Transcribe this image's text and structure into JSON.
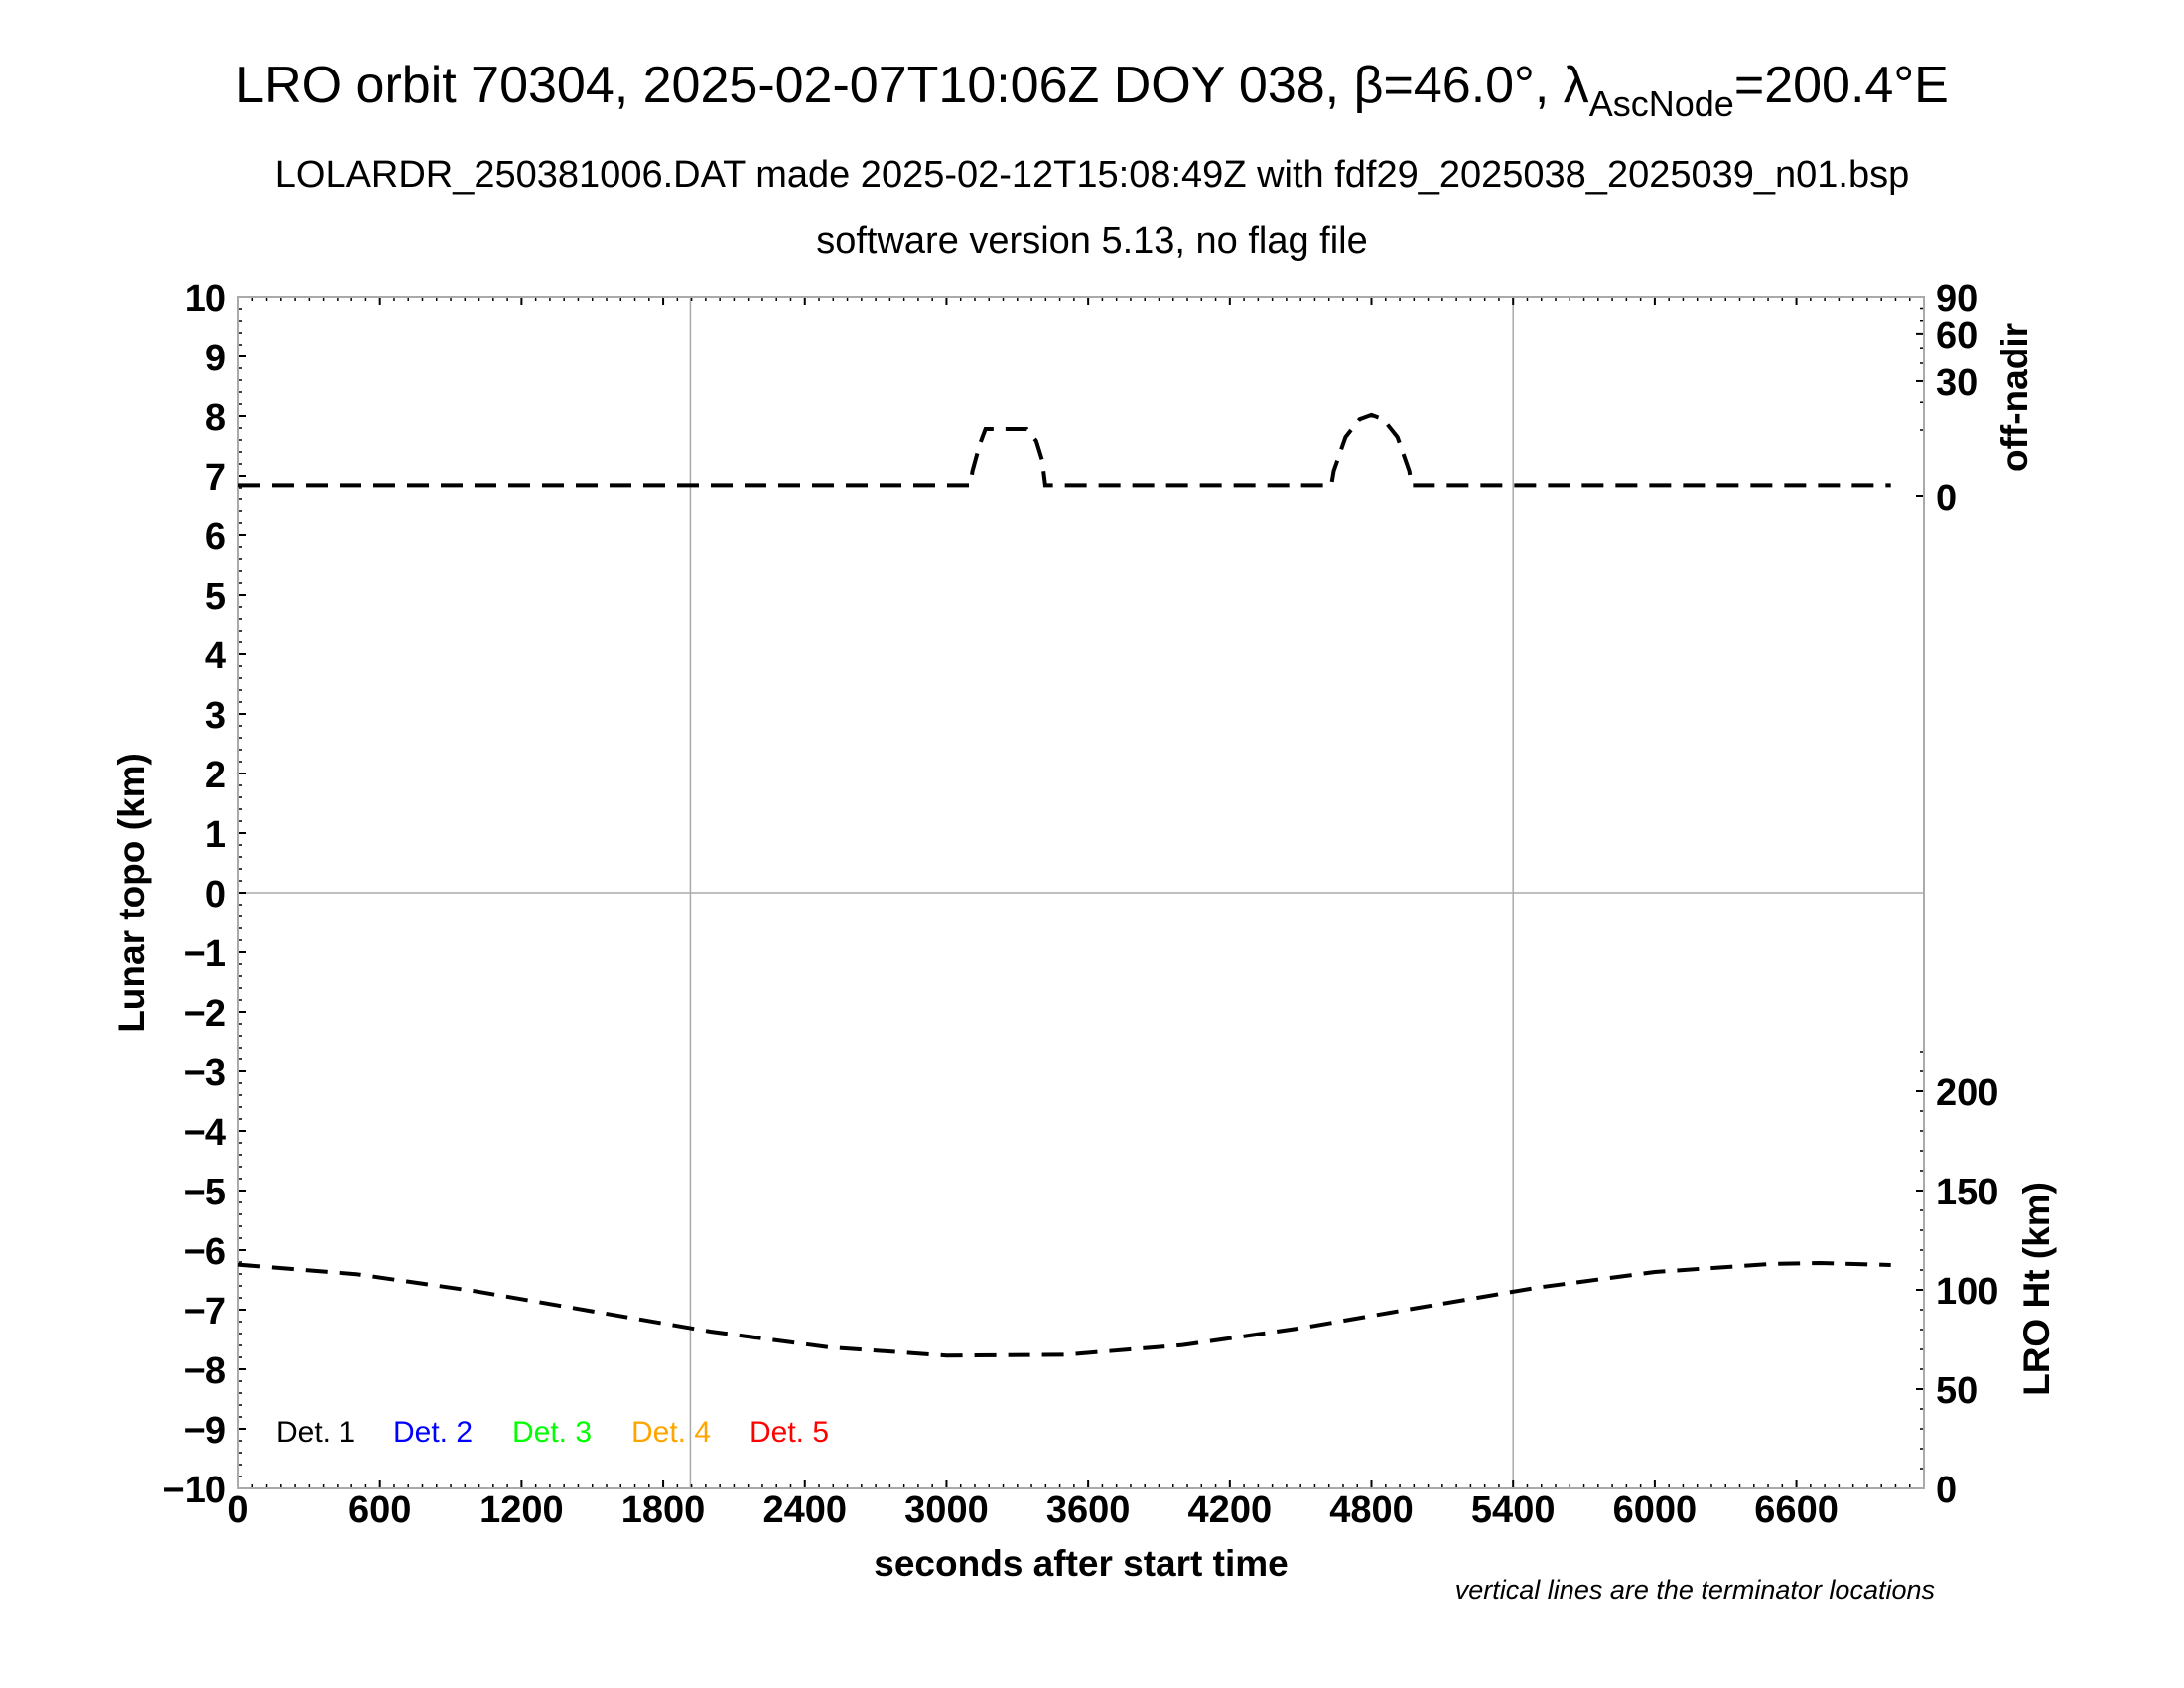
{
  "title": {
    "main_prefix": "LRO orbit 70304, 2025-02-07T10:06Z DOY 038, β=46.0°, λ",
    "main_sub": "AscNode",
    "main_suffix": "=200.4°E",
    "line2": "LOLARDR_250381006.DAT made 2025-02-12T15:08:49Z with fdf29_2025038_2025039_n01.bsp",
    "line3": "software version 5.13, no flag file"
  },
  "footnote": "vertical lines are the terminator locations",
  "chart_data": {
    "type": "line",
    "xlabel": "seconds after start time",
    "ylabel_left": "Lunar topo (km)",
    "ylabel_right_top": "off-nadir",
    "ylabel_right_bottom": "LRO Ht (km)",
    "xlim": [
      0,
      7140
    ],
    "ylim_left": [
      -10,
      10
    ],
    "x_ticks": [
      "0",
      "600",
      "1200",
      "1800",
      "2400",
      "3000",
      "3600",
      "4200",
      "4800",
      "5400",
      "6000",
      "6600"
    ],
    "y_ticks_left": [
      "10",
      "9",
      "8",
      "7",
      "6",
      "5",
      "4",
      "3",
      "2",
      "1",
      "0",
      "−1",
      "−2",
      "−3",
      "−4",
      "−5",
      "−6",
      "−7",
      "−8",
      "−9",
      "−10"
    ],
    "off_nadir_axis": {
      "scale": "sqrt",
      "range": [
        0,
        90
      ],
      "ticks": [
        "0",
        "30",
        "60",
        "90"
      ]
    },
    "ht_axis": {
      "range": [
        0,
        200
      ],
      "ticks": [
        "0",
        "50",
        "100",
        "150",
        "200"
      ]
    },
    "terminator_lines_s": [
      1915,
      5400
    ],
    "zero_line_km": 0,
    "legend": [
      {
        "label": "Det. 1",
        "color": "#000000"
      },
      {
        "label": "Det. 2",
        "color": "#0000ff"
      },
      {
        "label": "Det. 3",
        "color": "#00ff00"
      },
      {
        "label": "Det. 4",
        "color": "#ffa500"
      },
      {
        "label": "Det. 5",
        "color": "#ff0000"
      }
    ],
    "series": [
      {
        "axis": "off-nadir",
        "style": "dashed",
        "x": [
          0,
          3100,
          3110,
          3140,
          3165,
          3340,
          3380,
          3405,
          3418,
          4630,
          4640,
          4690,
          4750,
          4800,
          4850,
          4910,
          4960,
          4970,
          7000
        ],
        "y": [
          0.3,
          0.3,
          1.5,
          6,
          10.3,
          10.3,
          7,
          3,
          0.3,
          0.3,
          1.5,
          8,
          13.5,
          15,
          13.5,
          8,
          1.5,
          0.3,
          0.3
        ]
      },
      {
        "axis": "LRO Ht",
        "style": "dashed",
        "x": [
          0,
          500,
          1000,
          1500,
          2000,
          2500,
          3000,
          3500,
          4000,
          4500,
          5000,
          5500,
          6000,
          6500,
          6700,
          7000
        ],
        "y": [
          112.7,
          107.9,
          99.4,
          89.2,
          79.0,
          71.1,
          66.9,
          67.3,
          72.2,
          80.7,
          91.0,
          101.1,
          109.0,
          113.1,
          113.5,
          112.5
        ]
      }
    ]
  }
}
